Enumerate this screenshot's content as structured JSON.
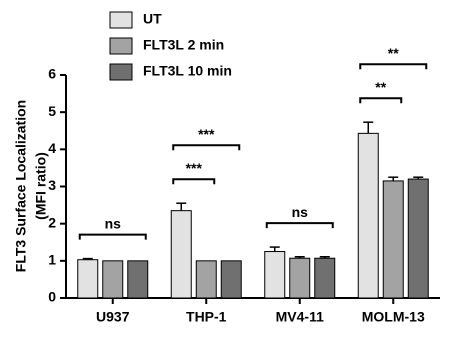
{
  "chart_data": {
    "type": "bar",
    "ylabel": [
      "FLT3 Surface Localization",
      "(MFI ratio)"
    ],
    "categories": [
      "U937",
      "THP-1",
      "MV4-11",
      "MOLM-13"
    ],
    "series": [
      {
        "name": "UT",
        "color": "#e2e2e2",
        "values": [
          1.03,
          2.35,
          1.25,
          4.43
        ],
        "errors": [
          0.03,
          0.2,
          0.12,
          0.3
        ]
      },
      {
        "name": "FLT3L 2 min",
        "color": "#a3a3a3",
        "values": [
          1.0,
          1.0,
          1.07,
          3.15
        ],
        "errors": [
          0,
          0,
          0.04,
          0.1
        ]
      },
      {
        "name": "FLT3L 10 min",
        "color": "#707070",
        "values": [
          1.0,
          1.0,
          1.07,
          3.2
        ],
        "errors": [
          0,
          0,
          0.04,
          0.05
        ]
      }
    ],
    "significance": [
      [
        {
          "text": "ns",
          "from": 0,
          "to": 2
        }
      ],
      [
        {
          "text": "***",
          "from": 0,
          "to": 1
        },
        {
          "text": "***",
          "from": 0,
          "to": 2
        }
      ],
      [
        {
          "text": "ns",
          "from": 0,
          "to": 2
        }
      ],
      [
        {
          "text": "**",
          "from": 0,
          "to": 1
        },
        {
          "text": "**",
          "from": 0,
          "to": 2
        }
      ]
    ],
    "ylim": [
      0,
      6
    ],
    "yticks": [
      0,
      1,
      2,
      3,
      4,
      5,
      6
    ]
  }
}
